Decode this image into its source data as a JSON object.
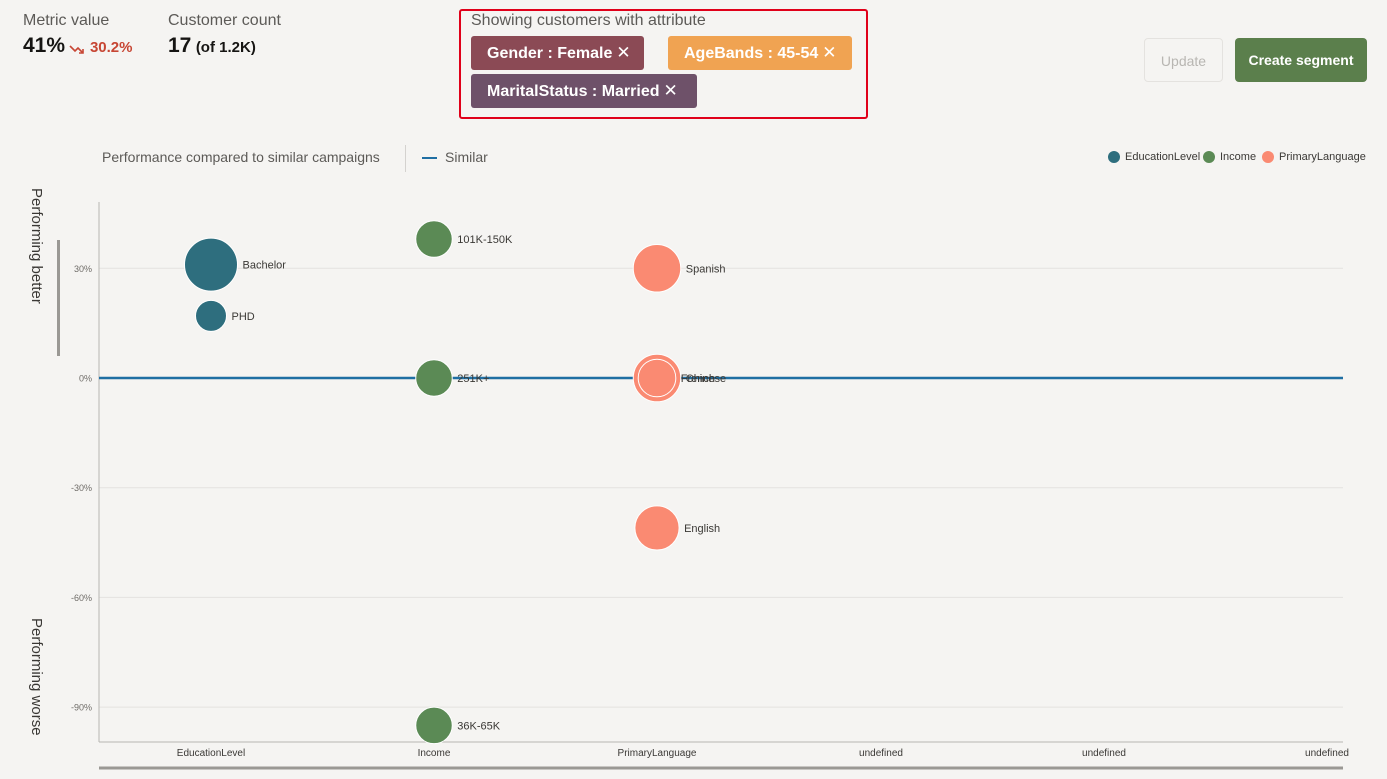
{
  "metrics": {
    "metric_value_label": "Metric value",
    "metric_value": "41%",
    "metric_trend": "30.2%",
    "trend_icon": "trend-down-icon",
    "customer_count_label": "Customer count",
    "customer_count": "17",
    "customer_total": "(of 1.2K)"
  },
  "attributes": {
    "title": "Showing customers with attribute",
    "chips": [
      {
        "label": "Gender : Female",
        "color": "#8b4a55"
      },
      {
        "label": "AgeBands : 45-54",
        "color": "#f0a352"
      },
      {
        "label": "MaritalStatus : Married",
        "color": "#6e5169"
      }
    ],
    "remove_glyph": "✕"
  },
  "actions": {
    "update_label": "Update",
    "create_label": "Create segment"
  },
  "legend": {
    "performance_label": "Performance compared to similar campaigns",
    "similar_label": "Similar",
    "items": [
      {
        "label": "EducationLevel",
        "color": "#2e6e7e"
      },
      {
        "label": "Income",
        "color": "#5b8a55"
      },
      {
        "label": "PrimaryLanguage",
        "color": "#fa8a72"
      }
    ]
  },
  "side_labels": {
    "top": "Performing better",
    "bottom": "Performing worse"
  },
  "chart_data": {
    "type": "scatter",
    "categories": [
      "EducationLevel",
      "Income",
      "PrimaryLanguage",
      "undefined",
      "undefined",
      "undefined"
    ],
    "y_ticks": [
      "30%",
      "0%",
      "-30%",
      "-60%",
      "-90%"
    ],
    "y_tick_values": [
      30,
      0,
      -30,
      -60,
      -90
    ],
    "ylim": [
      -100,
      48
    ],
    "reference_line": {
      "label": "Similar",
      "y": 0,
      "color": "#1f6fa3"
    },
    "grid": true,
    "legend_position": "top-right",
    "series": [
      {
        "name": "EducationLevel",
        "color": "#2e6e7e",
        "points": [
          {
            "category": "EducationLevel",
            "label": "Bachelor",
            "y": 31,
            "size": 3
          },
          {
            "category": "EducationLevel",
            "label": "PHD",
            "y": 17,
            "size": 1
          }
        ]
      },
      {
        "name": "Income",
        "color": "#5b8a55",
        "points": [
          {
            "category": "Income",
            "label": "101K-150K",
            "y": 38,
            "size": 1.5
          },
          {
            "category": "Income",
            "label": "251K+",
            "y": 0,
            "size": 1.5
          },
          {
            "category": "Income",
            "label": "36K-65K",
            "y": -95,
            "size": 1.5
          }
        ]
      },
      {
        "name": "PrimaryLanguage",
        "color": "#fa8a72",
        "points": [
          {
            "category": "PrimaryLanguage",
            "label": "Spanish",
            "y": 30,
            "size": 2.5
          },
          {
            "category": "PrimaryLanguage",
            "label": "Chinese",
            "y": 0,
            "size": 2.5
          },
          {
            "category": "PrimaryLanguage",
            "label": "French",
            "y": 0,
            "size": 1.6
          },
          {
            "category": "PrimaryLanguage",
            "label": "English",
            "y": -41,
            "size": 2.2
          }
        ]
      }
    ]
  }
}
